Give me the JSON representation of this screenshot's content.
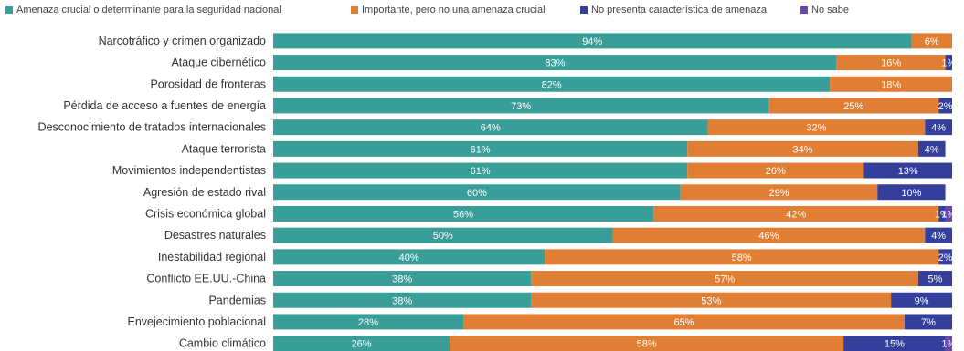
{
  "chart_data": {
    "type": "bar",
    "orientation": "horizontal",
    "stacked": true,
    "xlim": [
      0,
      100
    ],
    "legend_position": "top",
    "grid": false,
    "categories": [
      "Narcotráfico y crimen organizado",
      "Ataque cibernético",
      "Porosidad de fronteras",
      "Pérdida de acceso a fuentes de energía",
      "Desconocimiento de tratados internacionales",
      "Ataque terrorista",
      "Movimientos independentistas",
      "Agresión de estado rival",
      "Crisis económica global",
      "Desastres naturales",
      "Inestabilidad regional",
      "Conflicto EE.UU.-China",
      "Pandemias",
      "Envejecimiento poblacional",
      "Cambio climático"
    ],
    "series": [
      {
        "name": "Amenaza crucial o determinante para la seguridad nacional",
        "color": "#3a9e98",
        "values": [
          94,
          83,
          82,
          73,
          64,
          61,
          61,
          60,
          56,
          50,
          40,
          38,
          38,
          28,
          26
        ],
        "labels": [
          "94%",
          "83%",
          "82%",
          "73%",
          "64%",
          "61%",
          "61%",
          "60%",
          "56%",
          "50%",
          "40%",
          "38%",
          "38%",
          "28%",
          "26%"
        ]
      },
      {
        "name": "Importante, pero no una amenaza crucial",
        "color": "#e07f34",
        "values": [
          6,
          16,
          18,
          25,
          32,
          34,
          26,
          29,
          42,
          46,
          58,
          57,
          53,
          65,
          58
        ],
        "labels": [
          "6%",
          "16%",
          "18%",
          "25%",
          "32%",
          "34%",
          "26%",
          "29%",
          "42%",
          "46%",
          "58%",
          "57%",
          "53%",
          "65%",
          "58%"
        ]
      },
      {
        "name": "No presenta característica de amenaza",
        "color": "#343f9c",
        "values": [
          0,
          1,
          0,
          2,
          4,
          4,
          13,
          10,
          1,
          4,
          2,
          5,
          9,
          7,
          15
        ],
        "labels": [
          "",
          "1%",
          "",
          "2%",
          "4%",
          "4%",
          "13%",
          "10%",
          "1%",
          "4%",
          "2%",
          "5%",
          "9%",
          "7%",
          "15%"
        ]
      },
      {
        "name": "No sabe",
        "color": "#6b45a8",
        "values": [
          0,
          0,
          0,
          0,
          0,
          0,
          0,
          0,
          1,
          0,
          0,
          0,
          0,
          0,
          1
        ],
        "labels": [
          "",
          "",
          "",
          "",
          "",
          "",
          "",
          "",
          "1%",
          "",
          "",
          "",
          "",
          "",
          "1%"
        ]
      }
    ]
  }
}
